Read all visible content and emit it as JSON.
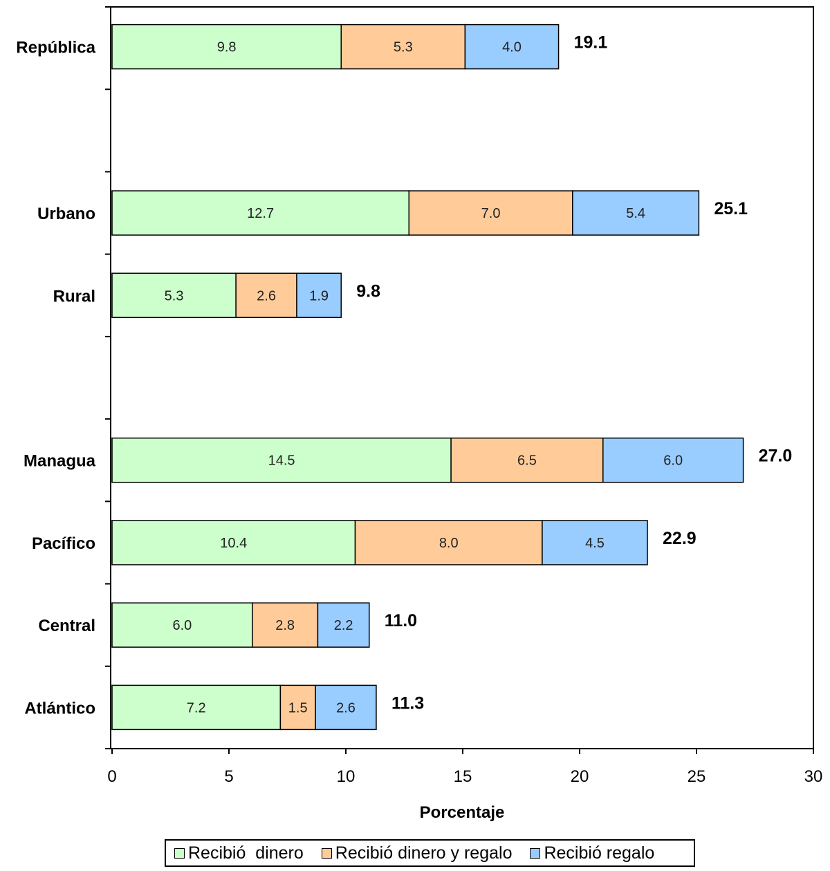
{
  "chart_data": {
    "type": "bar",
    "orientation": "horizontal",
    "stacked": true,
    "categories": [
      "República",
      "Urbano",
      "Rural",
      "Managua",
      "Pacífico",
      "Central",
      "Atlántico"
    ],
    "series": [
      {
        "name": "Recibió  dinero",
        "color": "#ccffcc",
        "values": [
          9.8,
          12.7,
          5.3,
          14.5,
          10.4,
          6.0,
          7.2
        ]
      },
      {
        "name": "Recibió dinero y regalo",
        "color": "#ffcc99",
        "values": [
          5.3,
          7.0,
          2.6,
          6.5,
          8.0,
          2.8,
          1.5
        ]
      },
      {
        "name": "Recibió regalo",
        "color": "#99ccff",
        "values": [
          4.0,
          5.4,
          1.9,
          6.0,
          4.5,
          2.2,
          2.6
        ]
      }
    ],
    "totals": [
      19.1,
      25.1,
      9.8,
      27.0,
      22.9,
      11.0,
      11.3
    ],
    "xlabel": "Porcentaje",
    "ylabel": "",
    "xlim": [
      0,
      30
    ],
    "xticks": [
      0,
      5,
      10,
      15,
      20,
      25,
      30
    ],
    "grid": false,
    "legend": "bottom"
  }
}
